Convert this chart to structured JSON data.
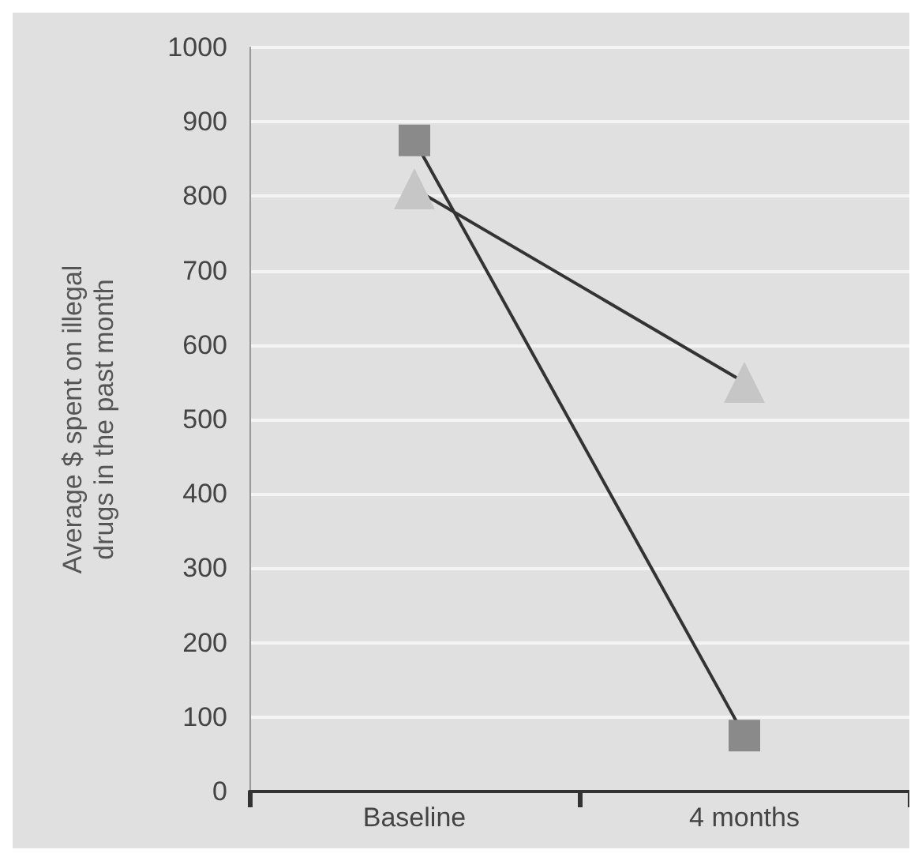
{
  "chart_data": {
    "type": "line",
    "ylabel": "Average $ spent on illegal\ndrugs in the past month",
    "categories": [
      "Baseline",
      "4 months"
    ],
    "series": [
      {
        "color": "#8a8a8a",
        "marker": "square",
        "values": [
          875,
          75
        ]
      },
      {
        "color": "#c6c6c6",
        "marker": "triangle",
        "values": [
          810,
          550
        ]
      }
    ],
    "ylim": [
      0,
      1000
    ],
    "yticks": [
      0,
      100,
      200,
      300,
      400,
      500,
      600,
      700,
      800,
      900,
      1000
    ],
    "grid": "y"
  }
}
